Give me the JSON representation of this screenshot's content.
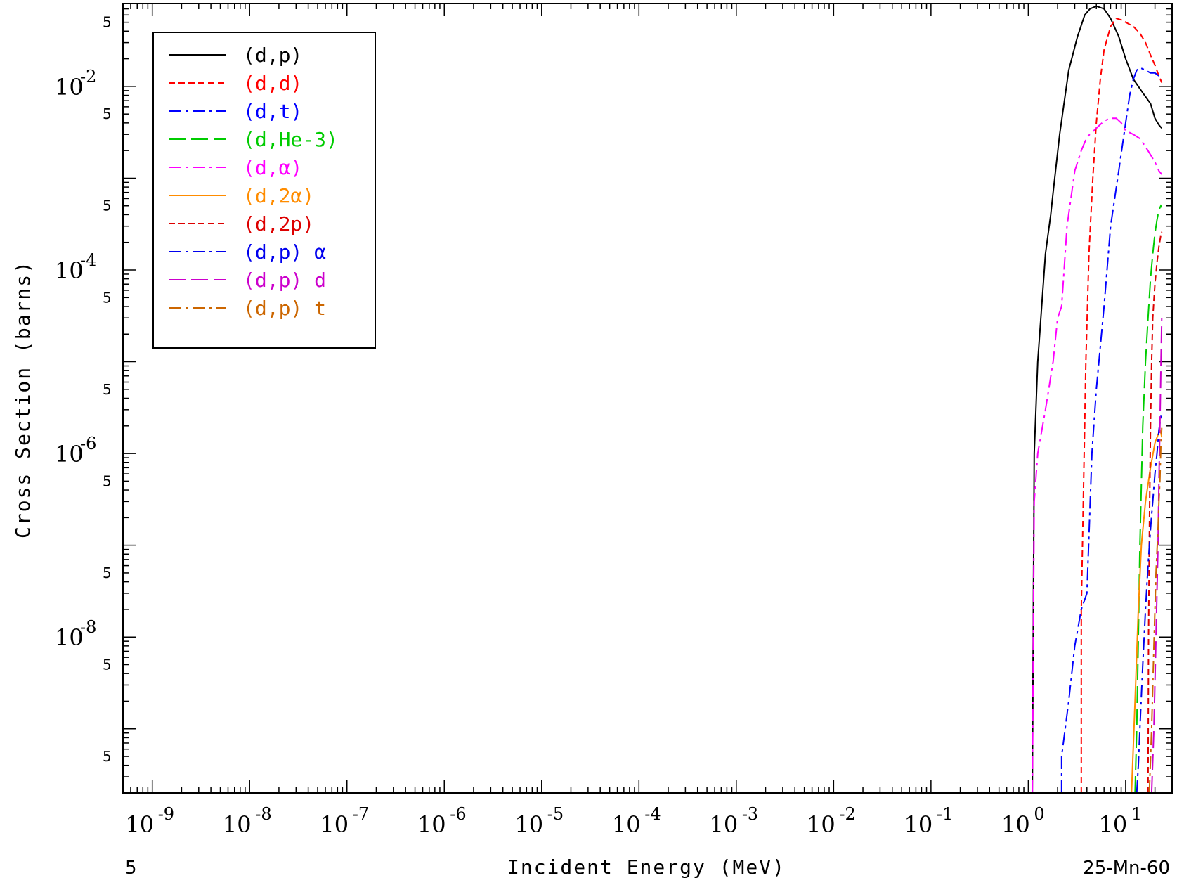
{
  "chart_data": {
    "type": "line",
    "title": "",
    "xlabel": "Incident Energy (MeV)",
    "ylabel": "Cross Section (barns)",
    "x_scale": "log",
    "y_scale": "log",
    "xlim": [
      5e-10,
      30
    ],
    "ylim": [
      2e-10,
      0.08
    ],
    "grid": false,
    "legend_position": "top-left",
    "x_tick_labels": [
      {
        "value": 1e-09,
        "base": "10",
        "exp": "-9"
      },
      {
        "value": 1e-08,
        "base": "10",
        "exp": "-8"
      },
      {
        "value": 1e-07,
        "base": "10",
        "exp": "-7"
      },
      {
        "value": 1e-06,
        "base": "10",
        "exp": "-6"
      },
      {
        "value": 1e-05,
        "base": "10",
        "exp": "-5"
      },
      {
        "value": 0.0001,
        "base": "10",
        "exp": "-4"
      },
      {
        "value": 0.001,
        "base": "10",
        "exp": "-3"
      },
      {
        "value": 0.01,
        "base": "10",
        "exp": "-2"
      },
      {
        "value": 0.1,
        "base": "10",
        "exp": "-1"
      },
      {
        "value": 1,
        "base": "10",
        "exp": "0"
      },
      {
        "value": 10,
        "base": "10",
        "exp": "1"
      }
    ],
    "y_tick_labels": [
      {
        "value": 0.01,
        "base": "10",
        "exp": "-2"
      },
      {
        "value": 0.0001,
        "base": "10",
        "exp": "-4"
      },
      {
        "value": 1e-06,
        "base": "10",
        "exp": "-6"
      },
      {
        "value": 1e-08,
        "base": "10",
        "exp": "-8"
      }
    ],
    "y_five_labels": [
      0.05,
      0.005,
      0.0005,
      5e-05,
      5e-06,
      5e-07,
      5e-08,
      5e-09,
      5e-10
    ],
    "x_five_label": "5",
    "corner_label": "25-Mn-60",
    "series": [
      {
        "name": "(d,p)",
        "color": "#000000",
        "dash": "solid",
        "x": [
          1.1,
          1.15,
          1.25,
          1.5,
          1.7,
          1.8,
          2.1,
          2.6,
          3.2,
          3.8,
          4.3,
          5.0,
          6.0,
          7.0,
          8.5,
          10,
          12,
          15,
          18,
          20,
          22,
          23.5
        ],
        "y": [
          2e-10,
          1e-06,
          1e-05,
          0.00015,
          0.0004,
          0.0007,
          0.003,
          0.015,
          0.035,
          0.06,
          0.07,
          0.075,
          0.07,
          0.055,
          0.035,
          0.02,
          0.012,
          0.0085,
          0.0065,
          0.0045,
          0.0038,
          0.0035
        ]
      },
      {
        "name": "(d,d)",
        "color": "#ff0000",
        "dash": "short",
        "x": [
          3.5,
          3.5,
          3.9,
          4.2,
          4.6,
          5.0,
          5.5,
          6.0,
          7.0,
          8.0,
          9.0,
          10,
          12,
          14,
          16,
          18,
          20,
          22,
          23.5
        ],
        "y": [
          2e-10,
          2e-08,
          1e-05,
          0.00015,
          0.001,
          0.004,
          0.012,
          0.025,
          0.045,
          0.055,
          0.053,
          0.05,
          0.045,
          0.038,
          0.03,
          0.022,
          0.017,
          0.013,
          0.011
        ]
      },
      {
        "name": "(d,t)",
        "color": "#0000ff",
        "dash": "dashdot",
        "x": [
          2.2,
          2.2,
          2.6,
          3.0,
          3.5,
          4.0,
          4.5,
          5.0,
          6.0,
          7.0,
          8.5,
          10,
          11,
          12,
          13,
          14,
          16,
          18,
          20,
          22,
          23.5
        ],
        "y": [
          2e-10,
          5e-10,
          2e-09,
          8e-09,
          2e-08,
          3e-08,
          1e-06,
          5e-06,
          4e-05,
          0.0003,
          0.0012,
          0.004,
          0.008,
          0.012,
          0.015,
          0.016,
          0.015,
          0.014,
          0.014,
          0.013,
          0.012
        ]
      },
      {
        "name": "(d,He-3)",
        "color": "#00cc00",
        "dash": "longdash",
        "x": [
          12.5,
          13.0,
          13.5,
          14.0,
          15.0,
          16.0,
          17.0,
          18.0,
          19.0,
          20.0,
          21.0,
          22.0,
          23.0,
          23.5
        ],
        "y": [
          2e-10,
          1e-09,
          1e-08,
          1e-07,
          2e-06,
          1e-05,
          3e-05,
          8e-05,
          0.00015,
          0.00025,
          0.00035,
          0.00045,
          0.0005,
          0.00048
        ]
      },
      {
        "name": "(d,α)",
        "color": "#ff00ff",
        "dash": "dashdot",
        "x": [
          1.1,
          1.15,
          1.25,
          1.5,
          1.8,
          2.0,
          2.2,
          2.5,
          3.0,
          3.5,
          4.0,
          5.0,
          6.0,
          7.0,
          8.0,
          9.0,
          10,
          12,
          14,
          16,
          18,
          20,
          22,
          23.5
        ],
        "y": [
          2e-10,
          3e-07,
          1e-06,
          3e-06,
          1e-05,
          3e-05,
          4e-05,
          0.0003,
          0.0012,
          0.002,
          0.0028,
          0.0035,
          0.0042,
          0.0045,
          0.0045,
          0.004,
          0.0033,
          0.003,
          0.0027,
          0.0022,
          0.0018,
          0.0015,
          0.0012,
          0.0011
        ]
      },
      {
        "name": "(d,2α)",
        "color": "#ff8c00",
        "dash": "solid",
        "x": [
          11.5,
          12.5,
          13.5,
          14.5,
          16.0,
          18.0,
          20.0,
          21.5,
          22.5,
          23.0,
          23.5
        ],
        "y": [
          2e-10,
          2e-09,
          2e-08,
          1e-07,
          3e-07,
          7e-07,
          1.3e-06,
          1.6e-06,
          1.8e-06,
          1.7e-06,
          1.5e-06
        ]
      },
      {
        "name": "(d,2p)",
        "color": "#dd0000",
        "dash": "short",
        "x": [
          17.0,
          17.2,
          17.6,
          18.0,
          18.5,
          19.0,
          20.0,
          21.0,
          22.0,
          23.0,
          23.5
        ],
        "y": [
          2e-10,
          1e-08,
          2e-07,
          2e-06,
          1e-05,
          3e-05,
          7e-05,
          0.00012,
          0.00018,
          0.00024,
          0.00026
        ]
      },
      {
        "name": "(d,p) α",
        "color": "#0000ee",
        "dash": "dashdot",
        "x": [
          13.0,
          13.5,
          14.0,
          15.0,
          16.0,
          17.0,
          18.0,
          19.0,
          20.0,
          21.0,
          22.0,
          23.0,
          23.5
        ],
        "y": [
          2e-10,
          4e-10,
          1e-09,
          5e-09,
          2e-08,
          6e-08,
          1.5e-07,
          3e-07,
          6e-07,
          1e-06,
          1.8e-06,
          2.5e-06,
          2.8e-06
        ]
      },
      {
        "name": "(d,p) d",
        "color": "#cc00cc",
        "dash": "longdash",
        "x": [
          18.5,
          19.5,
          20.5,
          21.5,
          22.0,
          22.5,
          23.0,
          23.5
        ],
        "y": [
          2e-10,
          1e-09,
          1e-08,
          1e-07,
          5e-07,
          2e-06,
          8e-06,
          3e-05
        ]
      },
      {
        "name": "(d,p) t",
        "color": "#cc6600",
        "dash": "dashdot",
        "x": [
          17.5,
          18.5,
          19.5,
          20.5,
          21.5,
          22.0,
          22.5,
          23.0,
          23.5
        ],
        "y": [
          2e-10,
          1e-09,
          8e-09,
          5e-08,
          1.5e-07,
          3e-07,
          5e-07,
          1.2e-06,
          1.9e-06
        ]
      }
    ]
  }
}
